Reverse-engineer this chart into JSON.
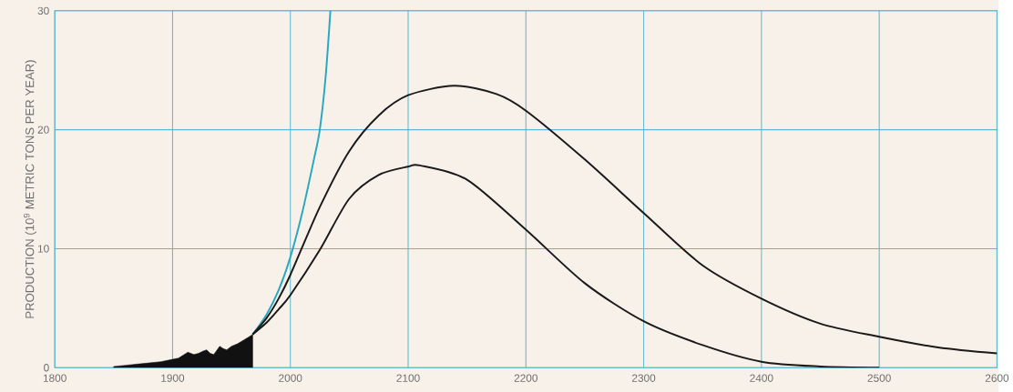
{
  "chart_data": {
    "type": "line",
    "ylabel": "PRODUCTION (10$^{9}$ METRIC TONS PER YEAR)",
    "xlim": [
      1800,
      2600
    ],
    "xticks": [
      1800,
      1900,
      2000,
      2100,
      2200,
      2300,
      2400,
      2500,
      2600
    ],
    "ylim": [
      0,
      30
    ],
    "yticks": [
      0,
      10,
      20,
      30
    ],
    "grid": true,
    "series": [
      {
        "type": "area",
        "color": "#111111",
        "x": [
          1850,
          1860,
          1870,
          1880,
          1890,
          1900,
          1905,
          1913,
          1918,
          1922,
          1926,
          1929,
          1932,
          1935,
          1940,
          1943,
          1946,
          1950,
          1955,
          1960,
          1965,
          1968
        ],
        "values": [
          0.1,
          0.2,
          0.3,
          0.4,
          0.5,
          0.7,
          0.8,
          1.3,
          1.1,
          1.2,
          1.4,
          1.5,
          1.2,
          1.1,
          1.8,
          1.6,
          1.5,
          1.8,
          2.0,
          2.3,
          2.6,
          2.8
        ]
      },
      {
        "color": "#2aa8c0",
        "x": [
          1968,
          1980,
          1990,
          2000,
          2010,
          2020,
          2025,
          2030,
          2034
        ],
        "values": [
          2.8,
          4.5,
          6.5,
          9.3,
          13,
          17.5,
          20,
          24.5,
          30
        ]
      },
      {
        "color": "#1a1a1a",
        "x": [
          1968,
          1980,
          1990,
          2000,
          2025,
          2050,
          2075,
          2100,
          2139,
          2175,
          2200,
          2250,
          2300,
          2350,
          2400,
          2450,
          2500,
          2550,
          2600
        ],
        "values": [
          2.8,
          4.2,
          5.8,
          7.8,
          13.5,
          18.2,
          21.2,
          22.9,
          23.7,
          23,
          21.6,
          17.5,
          13,
          8.6,
          5.8,
          3.7,
          2.6,
          1.7,
          1.2
        ]
      },
      {
        "color": "#1a1a1a",
        "x": [
          1968,
          1980,
          1990,
          2000,
          2025,
          2050,
          2075,
          2100,
          2110,
          2150,
          2200,
          2250,
          2300,
          2350,
          2400,
          2450,
          2500
        ],
        "values": [
          2.8,
          3.8,
          4.9,
          6.1,
          9.9,
          14.2,
          16.2,
          16.9,
          17.0,
          15.8,
          11.6,
          7.1,
          3.9,
          1.9,
          0.5,
          0.1,
          0
        ]
      }
    ]
  }
}
